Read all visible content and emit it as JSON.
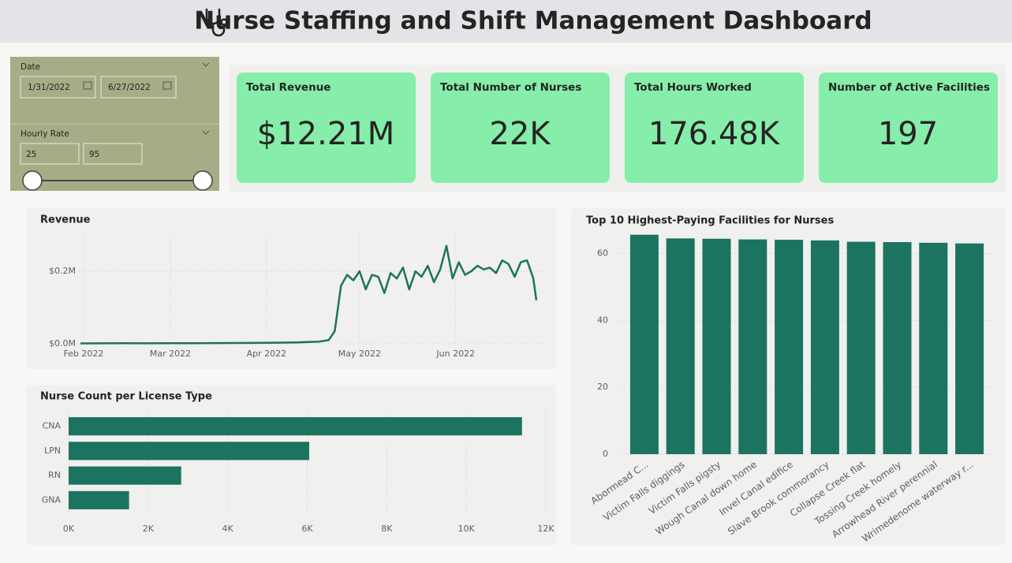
{
  "header": {
    "title": "Nurse Staffing and Shift Management Dashboard"
  },
  "filters": {
    "date": {
      "label": "Date",
      "start": "1/31/2022",
      "end": "6/27/2022"
    },
    "hourly_rate": {
      "label": "Hourly Rate",
      "min": 25,
      "max": 95
    }
  },
  "kpis": [
    {
      "label": "Total Revenue",
      "value": "$12.21M"
    },
    {
      "label": "Total Number of Nurses",
      "value": "22K"
    },
    {
      "label": "Total Hours Worked",
      "value": "176.48K"
    },
    {
      "label": "Number of Active Facilities",
      "value": "197"
    }
  ],
  "chart_data": [
    {
      "type": "line",
      "title": "Revenue",
      "color": "#1b7360",
      "grid": true,
      "x": [
        "2022-01-31",
        "2022-02-07",
        "2022-02-14",
        "2022-02-21",
        "2022-02-28",
        "2022-03-07",
        "2022-03-14",
        "2022-03-21",
        "2022-03-28",
        "2022-04-04",
        "2022-04-11",
        "2022-04-18",
        "2022-04-21",
        "2022-04-23",
        "2022-04-25",
        "2022-04-27",
        "2022-04-29",
        "2022-05-01",
        "2022-05-03",
        "2022-05-05",
        "2022-05-07",
        "2022-05-09",
        "2022-05-11",
        "2022-05-13",
        "2022-05-15",
        "2022-05-17",
        "2022-05-19",
        "2022-05-21",
        "2022-05-23",
        "2022-05-25",
        "2022-05-27",
        "2022-05-29",
        "2022-05-31",
        "2022-06-02",
        "2022-06-04",
        "2022-06-06",
        "2022-06-08",
        "2022-06-10",
        "2022-06-12",
        "2022-06-14",
        "2022-06-16",
        "2022-06-18",
        "2022-06-20",
        "2022-06-22",
        "2022-06-24",
        "2022-06-26",
        "2022-06-27"
      ],
      "values": [
        1000,
        1200,
        1500,
        1300,
        1800,
        1600,
        2000,
        2200,
        2500,
        3000,
        4000,
        6000,
        10000,
        35000,
        160000,
        190000,
        175000,
        200000,
        150000,
        190000,
        185000,
        140000,
        195000,
        180000,
        210000,
        150000,
        200000,
        185000,
        215000,
        170000,
        205000,
        270000,
        180000,
        225000,
        190000,
        200000,
        215000,
        205000,
        210000,
        195000,
        230000,
        220000,
        185000,
        225000,
        230000,
        180000,
        120000
      ],
      "xlim": [
        "2022-01-31",
        "2022-06-27"
      ],
      "xticks": [
        {
          "value": "2022-02-01",
          "label": "Feb 2022"
        },
        {
          "value": "2022-03-01",
          "label": "Mar 2022"
        },
        {
          "value": "2022-04-01",
          "label": "Apr 2022"
        },
        {
          "value": "2022-05-01",
          "label": "May 2022"
        },
        {
          "value": "2022-06-01",
          "label": "Jun 2022"
        }
      ],
      "ylim": [
        0,
        300000
      ],
      "yticks": [
        {
          "value": 0,
          "label": "$0.0M"
        },
        {
          "value": 200000,
          "label": "$0.2M"
        }
      ]
    },
    {
      "type": "barh",
      "title": "Nurse Count per License Type",
      "color": "#1b7360",
      "grid": true,
      "categories": [
        "CNA",
        "LPN",
        "RN",
        "GNA"
      ],
      "values": [
        11400,
        6050,
        2830,
        1520
      ],
      "xlim": [
        0,
        12000
      ],
      "xticks": [
        {
          "value": 0,
          "label": "0K"
        },
        {
          "value": 2000,
          "label": "2K"
        },
        {
          "value": 4000,
          "label": "4K"
        },
        {
          "value": 6000,
          "label": "6K"
        },
        {
          "value": 8000,
          "label": "8K"
        },
        {
          "value": 10000,
          "label": "10K"
        },
        {
          "value": 12000,
          "label": "12K"
        }
      ]
    },
    {
      "type": "bar",
      "title": "Top 10 Highest-Paying Facilities for Nurses",
      "color": "#1b7360",
      "grid": true,
      "categories": [
        "Abormead C...",
        "Victim Falls diggings",
        "Victim Falls pigsty",
        "Wough Canal down home",
        "Invel Canal edifice",
        "Slave Brook commorancy",
        "Collapse Creek flat",
        "Tossing Creek homely",
        "Arrowhead River perennial",
        "Wrimedenome waterway r..."
      ],
      "values": [
        65.6,
        64.5,
        64.4,
        64.2,
        64.1,
        63.9,
        63.5,
        63.4,
        63.2,
        63.0
      ],
      "ylim": [
        0,
        66
      ],
      "yticks": [
        0,
        20,
        40,
        60
      ]
    }
  ]
}
